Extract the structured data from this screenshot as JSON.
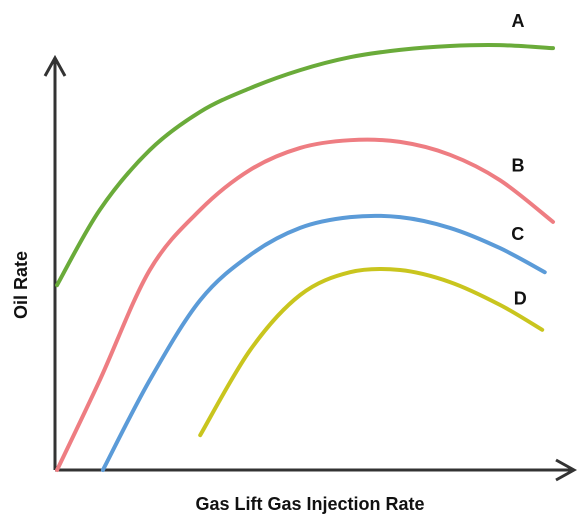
{
  "chart_data": {
    "type": "line",
    "xlabel": "Gas Lift Gas Injection Rate",
    "ylabel": "Oil Rate",
    "xlim": [
      0,
      100
    ],
    "ylim": [
      0,
      100
    ],
    "series": [
      {
        "name": "A",
        "color": "#6aab3a",
        "x": [
          0.4,
          8.7,
          18.4,
          28.2,
          37.9,
          47.6,
          57.3,
          67,
          76.7,
          86.4,
          96.7
        ],
        "values": [
          43,
          60.5,
          74.4,
          83.3,
          88.8,
          93,
          96,
          97.7,
          98.6,
          98.8,
          98.1
        ]
      },
      {
        "name": "B",
        "color": "#ee7d82",
        "x": [
          0.4,
          8.7,
          18.4,
          28.2,
          37.9,
          47.6,
          57.3,
          67,
          76.7,
          86.4,
          96.7
        ],
        "values": [
          0,
          20.9,
          46.5,
          60.5,
          69.8,
          74.9,
          76.7,
          76.3,
          73.3,
          67.4,
          57.7
        ]
      },
      {
        "name": "C",
        "color": "#5b9bd8",
        "x": [
          9.3,
          18.4,
          28.2,
          37.9,
          47.6,
          57.3,
          67,
          76.7,
          86.4,
          95.1
        ],
        "values": [
          0,
          20.9,
          39.5,
          50,
          56.3,
          58.8,
          58.8,
          56.3,
          51.6,
          46
        ]
      },
      {
        "name": "D",
        "color": "#c9c51e",
        "x": [
          28.2,
          37.9,
          47.6,
          57.3,
          67,
          76.7,
          86.4,
          94.6
        ],
        "values": [
          8.1,
          27.9,
          40.7,
          46,
          46.5,
          43.7,
          38.4,
          32.6
        ]
      }
    ]
  }
}
